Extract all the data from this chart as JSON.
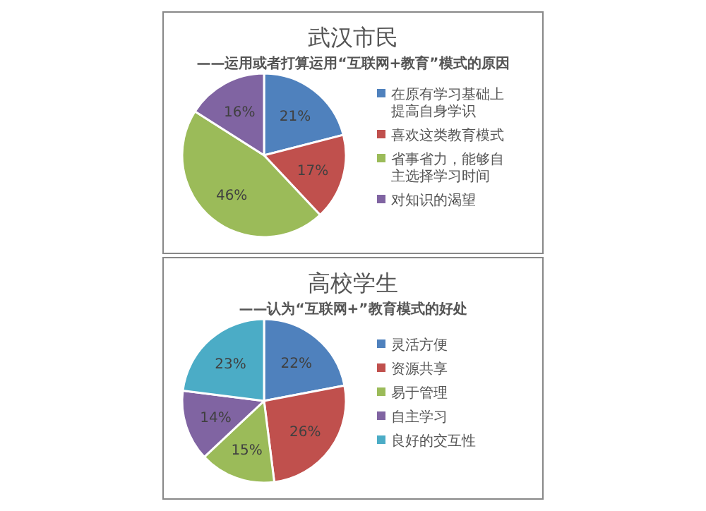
{
  "chart_data": [
    {
      "type": "pie",
      "title": "武汉市民",
      "subtitle": "——运用或者打算运用“互联网+教育”模式的原因",
      "categories": [
        "在原有学习基础上提高自身学识",
        "喜欢这类教育模式",
        "省事省力，能够自主选择学习时间",
        "对知识的渴望"
      ],
      "values": [
        21,
        17,
        46,
        16
      ],
      "value_labels": [
        "21%",
        "17%",
        "46%",
        "16%"
      ],
      "colors": [
        "#4f81bd",
        "#c0504d",
        "#9bbb59",
        "#8064a2"
      ],
      "legend": "right"
    },
    {
      "type": "pie",
      "title": "高校学生",
      "subtitle": "——认为“互联网+”教育模式的好处",
      "categories": [
        "灵活方便",
        "资源共享",
        "易于管理",
        "自主学习",
        "良好的交互性"
      ],
      "values": [
        22,
        26,
        15,
        14,
        23
      ],
      "value_labels": [
        "22%",
        "26%",
        "15%",
        "14%",
        "23%"
      ],
      "colors": [
        "#4f81bd",
        "#c0504d",
        "#9bbb59",
        "#8064a2",
        "#4bacc6"
      ],
      "legend": "right"
    }
  ]
}
